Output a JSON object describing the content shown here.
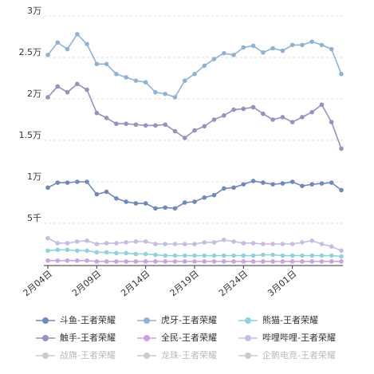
{
  "chart_data": {
    "type": "line",
    "categories": [
      "2月04日",
      null,
      null,
      null,
      null,
      "2月09日",
      null,
      null,
      null,
      null,
      "2月14日",
      null,
      null,
      null,
      null,
      "2月19日",
      null,
      null,
      null,
      null,
      "2月24日",
      null,
      null,
      null,
      null,
      "3月01日",
      null,
      null,
      null,
      null,
      null
    ],
    "ylim": [
      0,
      30000
    ],
    "yticks": [
      {
        "value": 5000,
        "label": "5千"
      },
      {
        "value": 10000,
        "label": "1万"
      },
      {
        "value": 15000,
        "label": "1.5万"
      },
      {
        "value": 20000,
        "label": "2万"
      },
      {
        "value": 25000,
        "label": "2.5万"
      },
      {
        "value": 30000,
        "label": "3万"
      }
    ],
    "grid": true,
    "series": [
      {
        "name": "斗鱼-王者荣耀",
        "color": "#6f88c2",
        "visible": true,
        "values": [
          9300,
          9900,
          9900,
          10000,
          10000,
          8500,
          8800,
          8000,
          7600,
          7400,
          7400,
          6800,
          6900,
          6800,
          7500,
          7600,
          8100,
          8400,
          9200,
          9300,
          9700,
          10100,
          9900,
          9700,
          9800,
          10000,
          9500,
          9700,
          9800,
          9900,
          9000
        ]
      },
      {
        "name": "虎牙-王者荣耀",
        "color": "#8fb2d9",
        "visible": true,
        "values": [
          25300,
          26800,
          26000,
          27800,
          26600,
          24200,
          24200,
          23000,
          22600,
          22200,
          22000,
          20800,
          20600,
          20200,
          22200,
          23000,
          24000,
          24800,
          25500,
          25300,
          26200,
          26400,
          25600,
          26100,
          25800,
          26500,
          26500,
          26900,
          26500,
          26000,
          23000
        ]
      },
      {
        "name": "熊猫-王者荣耀",
        "color": "#8fd3e0",
        "visible": true,
        "values": [
          1700,
          1800,
          1800,
          1700,
          1700,
          1500,
          1500,
          1400,
          1400,
          1300,
          1300,
          1200,
          1100,
          1100,
          1100,
          1100,
          1100,
          1100,
          1100,
          1100,
          1100,
          1100,
          1200,
          1200,
          1100,
          1100,
          1100,
          1100,
          1100,
          1100,
          1000
        ]
      },
      {
        "name": "触手-王者荣耀",
        "color": "#9b8ec4",
        "visible": true,
        "values": [
          20200,
          21500,
          20800,
          21800,
          21100,
          18300,
          17700,
          17000,
          17000,
          16900,
          16800,
          16800,
          16900,
          16100,
          15300,
          16200,
          16700,
          17500,
          18000,
          18700,
          18800,
          19000,
          18200,
          17500,
          17800,
          17200,
          17800,
          18400,
          19300,
          17200,
          14000
        ]
      },
      {
        "name": "全民-王者荣耀",
        "color": "#c9a3e3",
        "visible": true,
        "values": [
          500,
          500,
          500,
          500,
          500,
          400,
          400,
          400,
          400,
          400,
          400,
          400,
          400,
          400,
          400,
          400,
          400,
          400,
          400,
          400,
          400,
          400,
          400,
          400,
          400,
          400,
          400,
          400,
          400,
          400,
          400
        ]
      },
      {
        "name": "哔哩哔哩-王者荣耀",
        "color": "#c5bde6",
        "visible": true,
        "values": [
          3200,
          2600,
          2600,
          2800,
          2900,
          2500,
          2600,
          2600,
          2700,
          2800,
          2800,
          2500,
          2500,
          2500,
          2500,
          2500,
          2700,
          2700,
          3000,
          2800,
          2600,
          2600,
          2500,
          2500,
          2500,
          2500,
          2700,
          2900,
          2500,
          2200,
          1700
        ]
      },
      {
        "name": "战旗-王者荣耀",
        "color": "#cccccc",
        "visible": false
      },
      {
        "name": "龙珠-王者荣耀",
        "color": "#cccccc",
        "visible": false
      },
      {
        "name": "企鹅电竞-王者荣耀",
        "color": "#cccccc",
        "visible": false
      }
    ]
  }
}
